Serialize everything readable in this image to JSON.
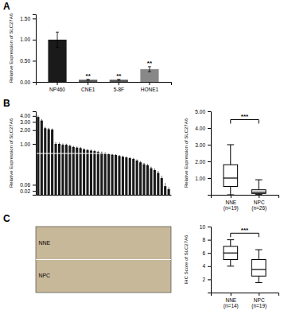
{
  "chart_data": [
    {
      "type": "bar",
      "title": "A",
      "categories": [
        "NP460",
        "CNE1",
        "5-8F",
        "HONE1"
      ],
      "values": [
        1.0,
        0.05,
        0.05,
        0.3
      ],
      "errors": [
        0.18,
        0.01,
        0.01,
        0.06
      ],
      "colors": [
        "#1a1a1a",
        "#555555",
        "#555555",
        "#888888"
      ],
      "ylabel": "Relative Expression of SLC27A6",
      "ylim": [
        0,
        1.6
      ],
      "yticks": [
        {
          "value": 0,
          "label": "0.00"
        },
        {
          "value": 0.5,
          "label": "0.50"
        },
        {
          "value": 1,
          "label": "1.00"
        },
        {
          "value": 1.5,
          "label": "1.50"
        }
      ],
      "annotations": [
        null,
        "**",
        "**",
        "**"
      ]
    },
    {
      "type": "bar",
      "title": "B",
      "values": [
        3.8,
        3.2,
        2.2,
        2.1,
        2.05,
        1.0,
        1.0,
        0.95,
        0.95,
        0.9,
        0.85,
        0.82,
        0.8,
        0.75,
        0.72,
        0.7,
        0.68,
        0.65,
        0.62,
        0.6,
        0.58,
        0.56,
        0.55,
        0.52,
        0.5,
        0.48,
        0.46,
        0.44,
        0.4,
        0.36,
        0.32,
        0.3,
        0.25,
        0.22,
        0.18,
        0.12,
        0.05,
        0.03
      ],
      "errors": [
        0.2,
        0.15,
        0.12,
        0.1,
        0.08,
        0.06,
        0.05,
        0.05,
        0.04,
        0.04,
        0.03,
        0.03,
        0.03,
        0.03,
        0.03,
        0.03,
        0.03,
        0.03,
        0.03,
        0.03,
        0.02,
        0.02,
        0.02,
        0.02,
        0.02,
        0.02,
        0.02,
        0.02,
        0.02,
        0.02,
        0.02,
        0.02,
        0.02,
        0.02,
        0.02,
        0.02,
        0.02,
        0.01
      ],
      "color": "#1a1a1a",
      "ylabel": "Relative Expression of SLC27A6",
      "ylim": [
        0,
        5.0
      ],
      "log": "y",
      "linthresh": 0.1,
      "yticks": [
        0.02,
        0.06,
        {
          "value": 1,
          "label": "1.00"
        },
        {
          "value": 2,
          "label": "2.00"
        },
        {
          "value": 3,
          "label": "3.00"
        },
        {
          "value": 4,
          "label": "4.00"
        }
      ],
      "hline": 0.6,
      "tick_labels": "y"
    },
    {
      "type": "box",
      "categories": [
        "NNE\n(n=19)",
        "NPC\n(n=26)"
      ],
      "boxes": [
        {
          "median": 1.0,
          "q1": 0.5,
          "q3": 1.8,
          "whislo": 0.0,
          "whishi": 3.0
        },
        {
          "median": 0.15,
          "q1": 0.08,
          "q3": 0.3,
          "whislo": 0.03,
          "whishi": 0.9
        }
      ],
      "ylabel": "Relative Expression of SLC27A6",
      "ylim": [
        0,
        5.0
      ],
      "yticks": [
        {
          "value": 1,
          "label": "1.00"
        },
        {
          "value": 2,
          "label": "2.00"
        },
        {
          "value": 3,
          "label": "3.00"
        },
        {
          "value": 4,
          "label": "4.00"
        },
        {
          "value": 5,
          "label": "5.00"
        }
      ],
      "annotations": [
        {
          "text": "***",
          "y": 4.5
        }
      ]
    },
    {
      "type": "image",
      "title": "C",
      "color": "#c8b89a",
      "annotations": [
        "NNE",
        "NPC"
      ],
      "tick_labels": false
    },
    {
      "type": "box",
      "categories": [
        "NNE\n(n=14)",
        "NPC\n(n=19)"
      ],
      "boxes": [
        {
          "median": 6.0,
          "q1": 5.0,
          "q3": 7.0,
          "whislo": 4.0,
          "whishi": 8.0
        },
        {
          "median": 3.5,
          "q1": 2.5,
          "q3": 5.0,
          "whislo": 1.5,
          "whishi": 6.5
        }
      ],
      "ylabel": "IHC Score of SLC27A6",
      "ylim": [
        0,
        10
      ],
      "yticks": [
        2,
        4,
        6,
        8,
        10
      ],
      "annotations": [
        {
          "text": "***",
          "y": 9.0
        }
      ]
    }
  ]
}
